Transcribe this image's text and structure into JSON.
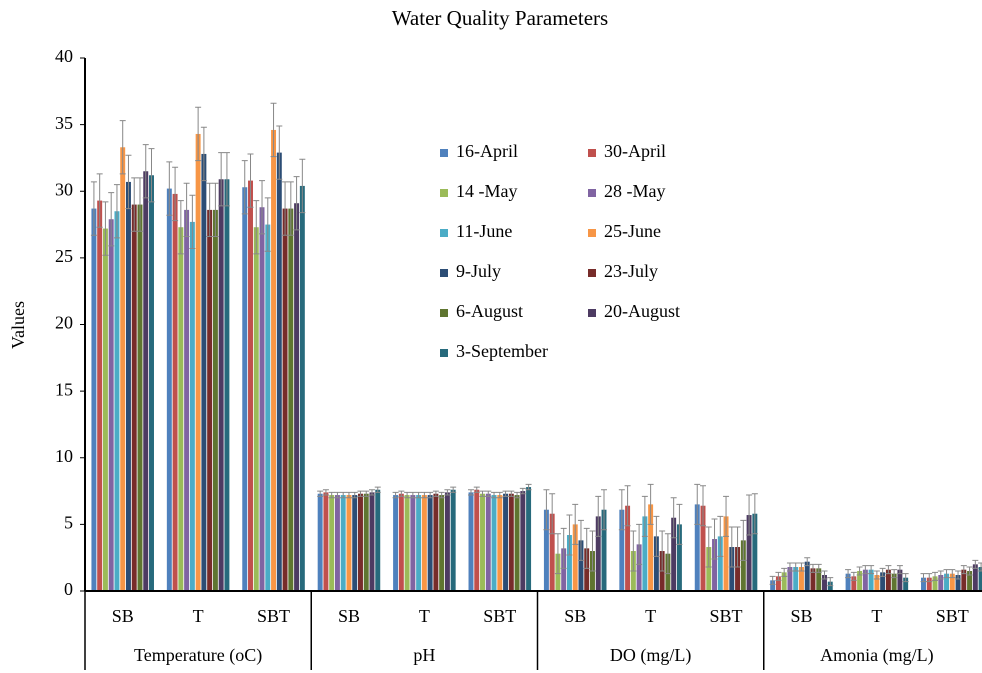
{
  "chart_data": {
    "type": "bar",
    "title": "Water Quality Parameters",
    "y_label": "Values",
    "categories": [
      "SB",
      "T",
      "SBT",
      "SB",
      "T",
      "SBT",
      "SB",
      "T",
      "SBT",
      "SB",
      "T",
      "SBT"
    ],
    "groups": [
      "Temperature (oC)",
      "pH",
      "DO (mg/L)",
      "Amonia (mg/L)"
    ],
    "ylim": [
      0,
      40
    ],
    "yticks": [
      0,
      5,
      10,
      15,
      20,
      25,
      30,
      35,
      40
    ],
    "grid": false,
    "legend": "top-right",
    "series": [
      {
        "name": "16-April",
        "color": "#4f81bd",
        "values": [
          28.7,
          30.2,
          30.3,
          7.3,
          7.2,
          7.4,
          6.1,
          6.1,
          6.5,
          0.8,
          1.3,
          1.0
        ],
        "errors": [
          2,
          2,
          2,
          0.2,
          0.2,
          0.2,
          1.5,
          1.5,
          1.5,
          0.3,
          0.3,
          0.3
        ]
      },
      {
        "name": "30-April",
        "color": "#c0504d",
        "values": [
          29.3,
          29.8,
          30.8,
          7.4,
          7.3,
          7.6,
          5.8,
          6.4,
          6.4,
          1.1,
          1.1,
          1.0
        ],
        "errors": [
          2,
          2,
          2,
          0.2,
          0.2,
          0.2,
          1.5,
          1.5,
          1.5,
          0.3,
          0.3,
          0.3
        ]
      },
      {
        "name": "14 -May",
        "color": "#9bbb59",
        "values": [
          27.2,
          27.3,
          27.3,
          7.2,
          7.2,
          7.3,
          2.8,
          3.0,
          3.3,
          1.4,
          1.5,
          1.1
        ],
        "errors": [
          2,
          2,
          2,
          0.2,
          0.2,
          0.2,
          1.5,
          1.5,
          1.5,
          0.3,
          0.3,
          0.3
        ]
      },
      {
        "name": "28 -May",
        "color": "#8064a2",
        "values": [
          27.9,
          28.6,
          28.8,
          7.2,
          7.2,
          7.3,
          3.2,
          3.5,
          3.9,
          1.8,
          1.6,
          1.2
        ],
        "errors": [
          2,
          2,
          2,
          0.2,
          0.2,
          0.2,
          1.5,
          1.5,
          1.5,
          0.3,
          0.3,
          0.3
        ]
      },
      {
        "name": "11-June",
        "color": "#4bacc6",
        "values": [
          28.5,
          27.7,
          27.5,
          7.2,
          7.2,
          7.2,
          4.2,
          5.6,
          4.1,
          1.8,
          1.6,
          1.3
        ],
        "errors": [
          2,
          2,
          2,
          0.2,
          0.2,
          0.2,
          1.5,
          1.5,
          1.5,
          0.3,
          0.3,
          0.3
        ]
      },
      {
        "name": "25-June",
        "color": "#f79646",
        "values": [
          33.3,
          34.3,
          34.6,
          7.2,
          7.2,
          7.2,
          5.0,
          6.5,
          5.6,
          1.8,
          1.2,
          1.3
        ],
        "errors": [
          2,
          2,
          2,
          0.2,
          0.2,
          0.2,
          1.5,
          1.5,
          1.5,
          0.3,
          0.3,
          0.3
        ]
      },
      {
        "name": "9-July",
        "color": "#2c4d75",
        "values": [
          30.7,
          32.8,
          32.9,
          7.2,
          7.2,
          7.3,
          3.8,
          4.1,
          3.3,
          2.2,
          1.4,
          1.2
        ],
        "errors": [
          2,
          2,
          2,
          0.2,
          0.2,
          0.2,
          1.5,
          1.5,
          1.5,
          0.3,
          0.3,
          0.3
        ]
      },
      {
        "name": "23-July",
        "color": "#772c2a",
        "values": [
          29.0,
          28.6,
          28.7,
          7.3,
          7.3,
          7.3,
          3.2,
          3.0,
          3.3,
          1.7,
          1.6,
          1.6
        ],
        "errors": [
          2,
          2,
          2,
          0.2,
          0.2,
          0.2,
          1.5,
          1.5,
          1.5,
          0.3,
          0.3,
          0.3
        ]
      },
      {
        "name": "6-August",
        "color": "#5f7530",
        "values": [
          29.0,
          28.6,
          28.7,
          7.3,
          7.2,
          7.2,
          3.0,
          2.8,
          3.8,
          1.7,
          1.3,
          1.5
        ],
        "errors": [
          2,
          2,
          2,
          0.2,
          0.2,
          0.2,
          1.5,
          1.5,
          1.5,
          0.3,
          0.3,
          0.3
        ]
      },
      {
        "name": "20-August",
        "color": "#4d3b62",
        "values": [
          31.5,
          30.9,
          29.1,
          7.4,
          7.4,
          7.5,
          5.6,
          5.5,
          5.7,
          1.2,
          1.6,
          2.0
        ],
        "errors": [
          2,
          2,
          2,
          0.2,
          0.2,
          0.2,
          1.5,
          1.5,
          1.5,
          0.3,
          0.3,
          0.3
        ]
      },
      {
        "name": "3-September",
        "color": "#276a7c",
        "values": [
          31.2,
          30.9,
          30.4,
          7.6,
          7.6,
          7.8,
          6.1,
          5.0,
          5.8,
          0.7,
          1.0,
          1.8
        ],
        "errors": [
          2,
          2,
          2,
          0.2,
          0.2,
          0.2,
          1.5,
          1.5,
          1.5,
          0.3,
          0.3,
          0.3
        ]
      }
    ]
  }
}
